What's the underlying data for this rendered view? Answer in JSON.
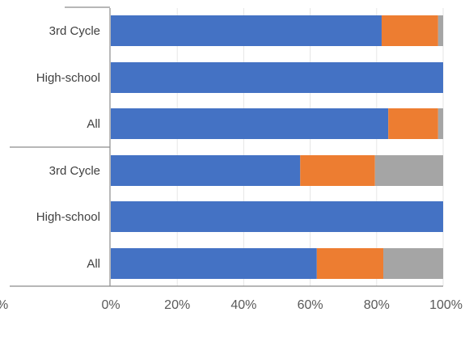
{
  "chart_data": {
    "type": "bar",
    "orientation": "horizontal",
    "stacked": true,
    "percent_stacked": true,
    "title": "",
    "xlabel": "",
    "ylabel": "",
    "xlim": [
      0,
      100
    ],
    "x_ticks": [
      "0%",
      "20%",
      "40%",
      "60%",
      "80%",
      "100%"
    ],
    "clipped_left_tick": "%",
    "grid": true,
    "legend": "none",
    "groups": [
      {
        "rows": [
          "3rd Cycle",
          "High-school",
          "All"
        ]
      },
      {
        "rows": [
          "3rd Cycle",
          "High-school",
          "All"
        ]
      }
    ],
    "categories": [
      "3rd Cycle",
      "High-school",
      "All",
      "3rd Cycle",
      "High-school",
      "All"
    ],
    "series": [
      {
        "color": "#4472C4",
        "values": [
          81.5,
          100,
          83.5,
          57,
          100,
          62
        ]
      },
      {
        "color": "#ED7D31",
        "values": [
          17,
          0,
          15,
          22.5,
          0,
          20
        ]
      },
      {
        "color": "#A5A5A5",
        "values": [
          1.5,
          0,
          1.5,
          20.5,
          0,
          18
        ]
      }
    ]
  }
}
